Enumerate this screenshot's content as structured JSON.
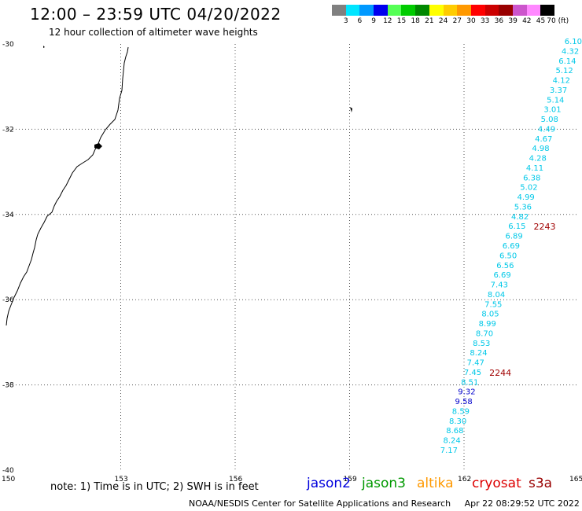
{
  "header": {
    "title": "12:00 – 23:59 UTC 04/20/2022",
    "subtitle": "12 hour collection of altimeter wave heights"
  },
  "colorbar": {
    "colors": [
      "#808080",
      "#00e5ff",
      "#0099ff",
      "#0000ee",
      "#55ff55",
      "#00cc00",
      "#008800",
      "#ffff00",
      "#ffcc00",
      "#ff9900",
      "#ff0000",
      "#cc0000",
      "#990000",
      "#cc55cc",
      "#ff88ff",
      "#000000"
    ],
    "labels": [
      "3",
      "6",
      "9",
      "12",
      "15",
      "18",
      "21",
      "24",
      "27",
      "30",
      "33",
      "36",
      "39",
      "42",
      "45",
      "70 (ft)"
    ]
  },
  "axes": {
    "lat_labels": [
      "-30",
      "-32",
      "-34",
      "-36",
      "-38",
      "-40"
    ],
    "lon_labels": [
      "150",
      "153",
      "156",
      "159",
      "162",
      "165"
    ]
  },
  "track": {
    "values": [
      "6.10",
      "4.32",
      "6.14",
      "5.12",
      "4.12",
      "3.37",
      "5.14",
      "3.01",
      "5.08",
      "4.49",
      "4.67",
      "4.98",
      "4.28",
      "4.11",
      "6.38",
      "5.02",
      "4.99",
      "5.36",
      "4.82",
      "6.15",
      "6.89",
      "6.69",
      "6.50",
      "6.56",
      "6.69",
      "7.43",
      "8.04",
      "7.55",
      "8.05",
      "8.99",
      "8.70",
      "8.53",
      "8.24",
      "7.47",
      "7.45",
      "8.51",
      "9.32",
      "9.58",
      "8.59",
      "8.30",
      "8.68",
      "8.24",
      "7.17"
    ],
    "times": [
      {
        "text": "2243",
        "at_value": 19
      },
      {
        "text": "2244",
        "at_value": 34
      }
    ]
  },
  "colors": {
    "track_text": "#00c8e8",
    "track_dark": "#0000cc",
    "time_label": "#a00000",
    "grid": "#555555"
  },
  "footer": {
    "note": "note:  1) Time is in UTC;  2) SWH is in feet",
    "credit": "NOAA/NESDIS Center for Satellite Applications and Research",
    "timestamp": "Apr 22 08:29:52 UTC 2022"
  },
  "legend": [
    {
      "label": "jason2",
      "color": "#0000dd"
    },
    {
      "label": "jason3",
      "color": "#009900"
    },
    {
      "label": "altika",
      "color": "#ff9900"
    },
    {
      "label": "cryosat",
      "color": "#dd0000"
    },
    {
      "label": "s3a",
      "color": "#990000"
    }
  ]
}
